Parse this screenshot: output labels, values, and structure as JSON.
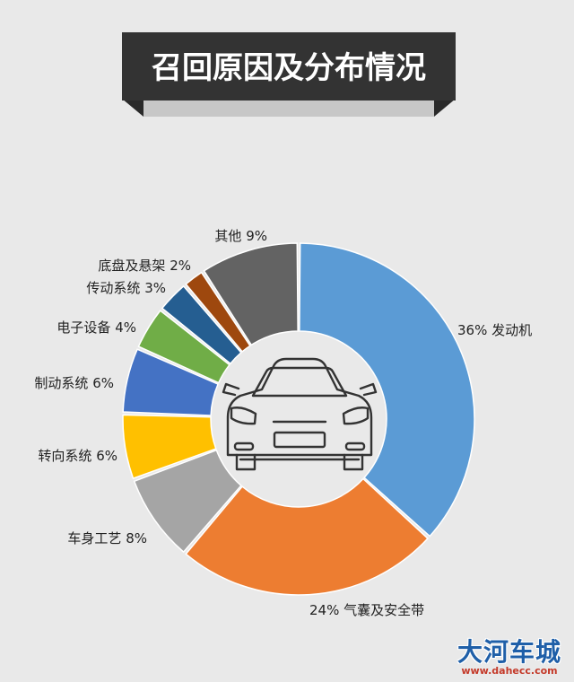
{
  "chart_data": {
    "type": "pie",
    "title": "召回原因及分布情况",
    "slices": [
      {
        "label": "发动机",
        "value": 36,
        "display": "36%  发动机",
        "color": "#5b9bd5"
      },
      {
        "label": "气囊及安全带",
        "value": 24,
        "display": "24%  气囊及安全带",
        "color": "#ed7d31"
      },
      {
        "label": "车身工艺",
        "value": 8,
        "display": "车身工艺  8%",
        "color": "#a5a5a5"
      },
      {
        "label": "转向系统",
        "value": 6,
        "display": "转向系统  6%",
        "color": "#ffc000"
      },
      {
        "label": "制动系统",
        "value": 6,
        "display": "制动系统  6%",
        "color": "#4472c4"
      },
      {
        "label": "电子设备",
        "value": 4,
        "display": "电子设备   4%",
        "color": "#70ad47"
      },
      {
        "label": "传动系统",
        "value": 3,
        "display": "传动系统  3%",
        "color": "#255e91"
      },
      {
        "label": "底盘及悬架",
        "value": 2,
        "display": "底盘及悬架 2%",
        "color": "#9e480e"
      },
      {
        "label": "其他",
        "value": 9,
        "display": "其他   9%",
        "color": "#636363"
      }
    ]
  },
  "watermark": {
    "main": "大河车城",
    "sub": "www.dahecc.com"
  }
}
